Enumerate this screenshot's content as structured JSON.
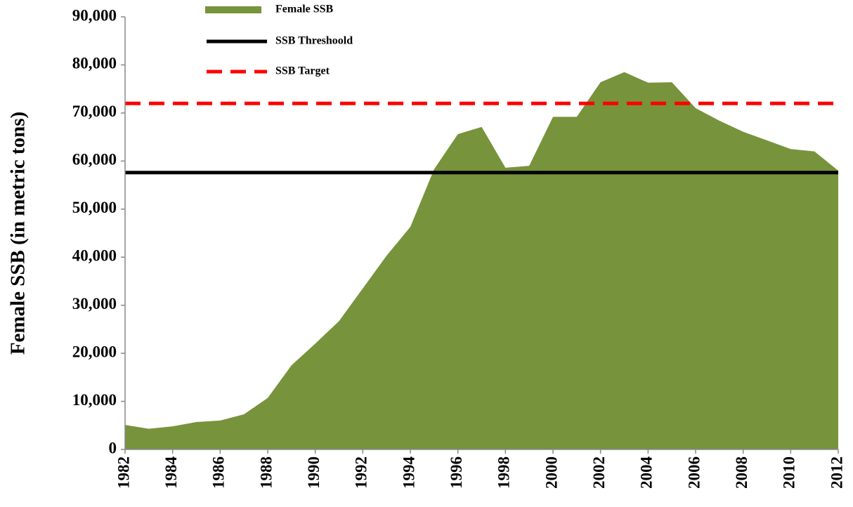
{
  "chart_data": {
    "type": "area",
    "y_label": "Female SSB (in metric tons)",
    "x": [
      1982,
      1983,
      1984,
      1985,
      1986,
      1987,
      1988,
      1989,
      1990,
      1991,
      1992,
      1993,
      1994,
      1995,
      1996,
      1997,
      1998,
      1999,
      2000,
      2001,
      2002,
      2003,
      2004,
      2005,
      2006,
      2007,
      2008,
      2009,
      2010,
      2011,
      2012
    ],
    "series": [
      {
        "name": "Female SSB",
        "color": "#77933c",
        "values": [
          5100,
          4300,
          4800,
          5700,
          6000,
          7300,
          10700,
          17500,
          22000,
          26700,
          33500,
          40300,
          46300,
          58300,
          65600,
          67100,
          58600,
          59000,
          69200,
          69200,
          76400,
          78500,
          76300,
          76400,
          71000,
          68400,
          66100,
          64300,
          62500,
          62000,
          58000
        ]
      }
    ],
    "reference_lines": [
      {
        "name": "SSB Threshoold",
        "value": 57600,
        "color": "#000000",
        "style": "solid"
      },
      {
        "name": "SSB Target",
        "value": 72000,
        "color": "#ff0000",
        "style": "dashed"
      }
    ],
    "xlim": [
      1982,
      2012
    ],
    "xticks": [
      1982,
      1984,
      1986,
      1988,
      1990,
      1992,
      1994,
      1996,
      1998,
      2000,
      2002,
      2004,
      2006,
      2008,
      2010,
      2012
    ],
    "ylim": [
      0,
      90000
    ],
    "yticks": [
      0,
      {
        "value": 10000,
        "label": "10,000"
      },
      {
        "value": 20000,
        "label": "20,000"
      },
      {
        "value": 30000,
        "label": "30,000"
      },
      {
        "value": 40000,
        "label": "40,000"
      },
      {
        "value": 50000,
        "label": "50,000"
      },
      {
        "value": 60000,
        "label": "60,000"
      },
      {
        "value": 70000,
        "label": "70,000"
      },
      {
        "value": 80000,
        "label": "80,000"
      },
      {
        "value": 90000,
        "label": "90,000"
      }
    ],
    "grid": false
  }
}
